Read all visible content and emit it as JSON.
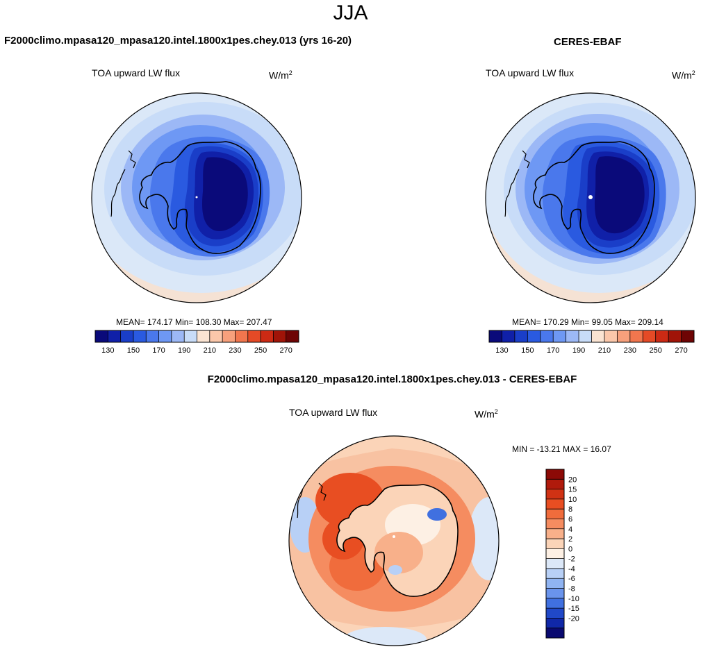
{
  "title": "JJA",
  "panels": [
    {
      "title": "F2000climo.mpasa120_mpasa120.intel.1800x1pes.chey.013 (yrs 16-20)",
      "variable": "TOA upward LW flux",
      "units_base": "W/m",
      "units_exp": "2",
      "stats": "MEAN= 174.17  Min= 108.30  Max= 207.47"
    },
    {
      "title": "CERES-EBAF",
      "variable": "TOA upward LW flux",
      "units_base": "W/m",
      "units_exp": "2",
      "stats": "MEAN= 170.29  Min=  99.05  Max= 209.14"
    },
    {
      "title": "F2000climo.mpasa120_mpasa120.intel.1800x1pes.chey.013 - CERES-EBAF",
      "variable": "TOA upward LW flux",
      "units_base": "W/m",
      "units_exp": "2",
      "stats": "MIN = -13.21 MAX =  16.07"
    }
  ],
  "chart_data": [
    {
      "type": "heatmap",
      "projection": "south-polar-stereographic",
      "title": "F2000climo.mpasa120_mpasa120.intel.1800x1pes.chey.013 (yrs 16-20)",
      "variable": "TOA upward LW flux",
      "units": "W/m2",
      "mean": 174.17,
      "min": 108.3,
      "max": 207.47,
      "colorbar": {
        "orientation": "horizontal",
        "levels": [
          130,
          140,
          150,
          160,
          170,
          180,
          190,
          200,
          210,
          220,
          230,
          240,
          250,
          260,
          270
        ],
        "tick_labels": [
          "130",
          "150",
          "170",
          "190",
          "210",
          "230",
          "250",
          "270"
        ],
        "colors": [
          "#0a0a7a",
          "#1020a8",
          "#1a3ec8",
          "#2a5ae0",
          "#4a78ec",
          "#6e98f4",
          "#9cb8f6",
          "#c8dcf8",
          "#fbe4d2",
          "#fbc7aa",
          "#f7a07c",
          "#f1764e",
          "#e54a26",
          "#cc2a14",
          "#a01408",
          "#6e0404"
        ]
      }
    },
    {
      "type": "heatmap",
      "projection": "south-polar-stereographic",
      "title": "CERES-EBAF",
      "variable": "TOA upward LW flux",
      "units": "W/m2",
      "mean": 170.29,
      "min": 99.05,
      "max": 209.14,
      "colorbar": {
        "orientation": "horizontal",
        "levels": [
          130,
          140,
          150,
          160,
          170,
          180,
          190,
          200,
          210,
          220,
          230,
          240,
          250,
          260,
          270
        ],
        "tick_labels": [
          "130",
          "150",
          "170",
          "190",
          "210",
          "230",
          "250",
          "270"
        ],
        "colors": [
          "#0a0a7a",
          "#1020a8",
          "#1a3ec8",
          "#2a5ae0",
          "#4a78ec",
          "#6e98f4",
          "#9cb8f6",
          "#c8dcf8",
          "#fbe4d2",
          "#fbc7aa",
          "#f7a07c",
          "#f1764e",
          "#e54a26",
          "#cc2a14",
          "#a01408",
          "#6e0404"
        ]
      }
    },
    {
      "type": "heatmap",
      "projection": "south-polar-stereographic",
      "title": "F2000climo.mpasa120_mpasa120.intel.1800x1pes.chey.013 - CERES-EBAF",
      "variable": "TOA upward LW flux",
      "units": "W/m2",
      "min": -13.21,
      "max": 16.07,
      "colorbar": {
        "orientation": "vertical",
        "levels": [
          20,
          15,
          10,
          8,
          6,
          4,
          2,
          0,
          -2,
          -4,
          -6,
          -8,
          -10,
          -15,
          -20
        ],
        "tick_labels": [
          "20",
          "15",
          "10",
          "8",
          "6",
          "4",
          "2",
          "0",
          "-2",
          "-4",
          "-6",
          "-8",
          "-10",
          "-15",
          "-20"
        ],
        "colors": [
          "#8c0a06",
          "#b01a0c",
          "#d03214",
          "#e84e22",
          "#f06c3c",
          "#f58c60",
          "#f8b08a",
          "#fbd4b8",
          "#fdf0e4",
          "#dce8f8",
          "#b8d0f6",
          "#90b4f2",
          "#6a94ec",
          "#4070e0",
          "#2048c8",
          "#1028a8",
          "#0a0a70"
        ]
      }
    }
  ]
}
